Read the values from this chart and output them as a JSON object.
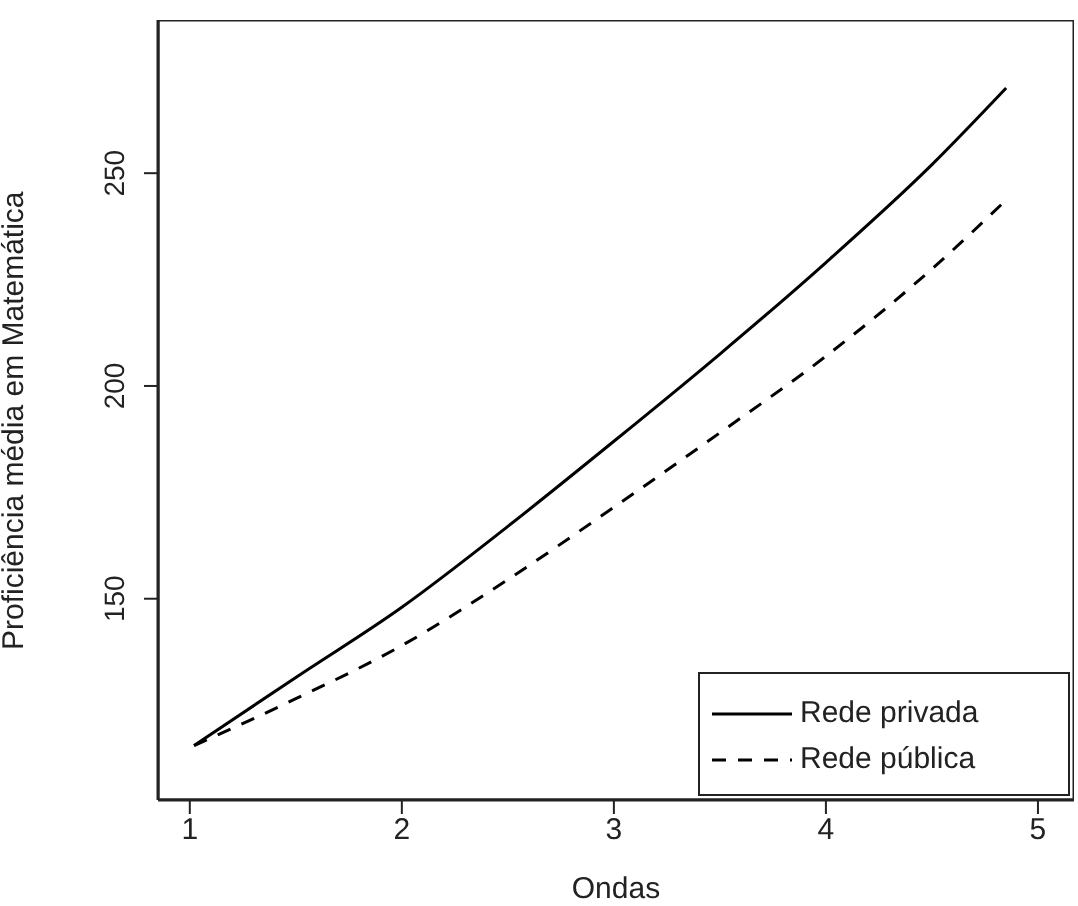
{
  "chart_data": {
    "type": "line",
    "xlabel": "Ondas",
    "ylabel": "Proficiência média em Matemática",
    "x": [
      1.02,
      1.5,
      2,
      2.5,
      3,
      3.5,
      4,
      4.5,
      4.85
    ],
    "series": [
      {
        "name": "Rede privada",
        "color": "#000000",
        "line_style": "solid",
        "values": [
          115.5,
          131.5,
          148,
          167,
          187,
          207.5,
          229,
          252,
          270
        ]
      },
      {
        "name": "Rede pública",
        "color": "#000000",
        "line_style": "dashed",
        "values": [
          115.5,
          126.5,
          139,
          154.5,
          171.5,
          189,
          207,
          227.5,
          243.7
        ]
      }
    ],
    "xlim": [
      0.85,
      5.17
    ],
    "ylim": [
      102.7,
      286
    ],
    "xticks": [
      1,
      2,
      3,
      4,
      5
    ],
    "yticks": [
      150,
      200,
      250
    ],
    "grid": false,
    "legend": "bottom right",
    "marker": "none"
  }
}
